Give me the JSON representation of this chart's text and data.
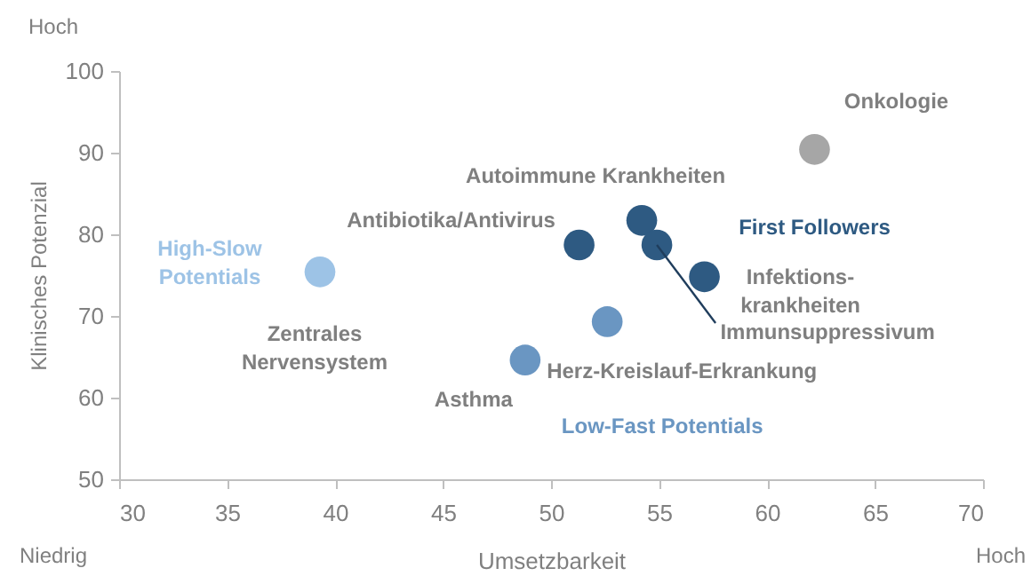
{
  "chart_data": {
    "type": "scatter",
    "xlabel": "Umsetzbarkeit",
    "ylabel": "Klinisches Potenzial",
    "xlim": [
      30,
      70
    ],
    "xticks": [
      30,
      35,
      40,
      45,
      50,
      55,
      60,
      65,
      70
    ],
    "ylim": [
      50,
      100
    ],
    "yticks": [
      50,
      60,
      70,
      80,
      90,
      100
    ],
    "grid": false,
    "marker": "circle",
    "series": [
      {
        "color": "#a6a6a6",
        "x": [
          62.2
        ],
        "values": [
          90.4
        ]
      },
      {
        "name": "First Followers",
        "color": "#2e5a82",
        "x": [
          57.1,
          51.3,
          54.2,
          54.9
        ],
        "values": [
          74.8,
          78.7,
          81.7,
          78.7
        ]
      },
      {
        "name": "Low-Fast Potentials",
        "color": "#6a96c2",
        "x": [
          52.6,
          48.8
        ],
        "values": [
          69.3,
          64.6
        ]
      },
      {
        "name": "High-Slow Potentials",
        "color": "#9dc3e6",
        "x": [
          39.3
        ],
        "values": [
          75.4
        ]
      }
    ],
    "annotations": [
      {
        "text": "Onkologie",
        "x": 62.2,
        "y": 90.4
      },
      {
        "text": "Autoimmune Krankheiten",
        "x": 54.2,
        "y": 81.7
      },
      {
        "text": "Antibiotika/Antivirus",
        "x": 51.3,
        "y": 78.7
      },
      {
        "text": "Immunsuppressivum",
        "x": 54.9,
        "y": 78.7
      },
      {
        "text": "Infektions-\nkrankheiten",
        "x": 57.1,
        "y": 74.8
      },
      {
        "text": "Zentrales\nNervensystem",
        "x": 39.3,
        "y": 75.4
      },
      {
        "text": "Herz-Kreislauf-Erkrankung",
        "x": 52.6,
        "y": 69.3
      },
      {
        "text": "Asthma",
        "x": 48.8,
        "y": 64.6
      },
      "Hoch",
      "Niedrig",
      "Hoch"
    ]
  }
}
